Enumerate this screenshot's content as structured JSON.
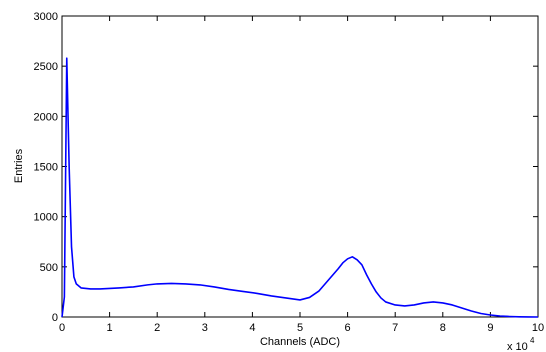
{
  "chart_data": {
    "type": "line",
    "title": "",
    "xlabel": "Channels (ADC)",
    "ylabel": "Entries",
    "x_multiplier_label": "x 10",
    "x_multiplier_exponent": "4",
    "xlim": [
      0,
      10
    ],
    "ylim": [
      0,
      3000
    ],
    "xticks": [
      "0",
      "1",
      "2",
      "3",
      "4",
      "5",
      "6",
      "7",
      "8",
      "9",
      "10"
    ],
    "yticks": [
      "0",
      "500",
      "1000",
      "1500",
      "2000",
      "2500",
      "3000"
    ],
    "grid": false,
    "line_color": "#0000ff",
    "series": [
      {
        "x": [
          0,
          0.05,
          0.1,
          0.15,
          0.2,
          0.25,
          0.3,
          0.4,
          0.5,
          0.6,
          0.8,
          1.0,
          1.2,
          1.5,
          1.8,
          2.0,
          2.3,
          2.6,
          2.9,
          3.2,
          3.5,
          3.8,
          4.1,
          4.4,
          4.7,
          5.0,
          5.2,
          5.4,
          5.6,
          5.8,
          5.9,
          6.0,
          6.1,
          6.2,
          6.3,
          6.4,
          6.5,
          6.6,
          6.7,
          6.8,
          7.0,
          7.2,
          7.4,
          7.6,
          7.8,
          8.0,
          8.2,
          8.4,
          8.6,
          8.8,
          9.0,
          9.2,
          9.4,
          9.6,
          9.8,
          10.0
        ],
        "y": [
          0,
          200,
          2580,
          1500,
          700,
          400,
          330,
          290,
          285,
          280,
          280,
          285,
          290,
          300,
          320,
          330,
          335,
          330,
          320,
          300,
          275,
          255,
          235,
          210,
          190,
          170,
          195,
          260,
          370,
          480,
          540,
          580,
          600,
          570,
          520,
          420,
          330,
          250,
          190,
          150,
          120,
          110,
          120,
          140,
          150,
          140,
          120,
          90,
          60,
          35,
          20,
          10,
          5,
          2,
          1,
          0
        ]
      }
    ]
  }
}
